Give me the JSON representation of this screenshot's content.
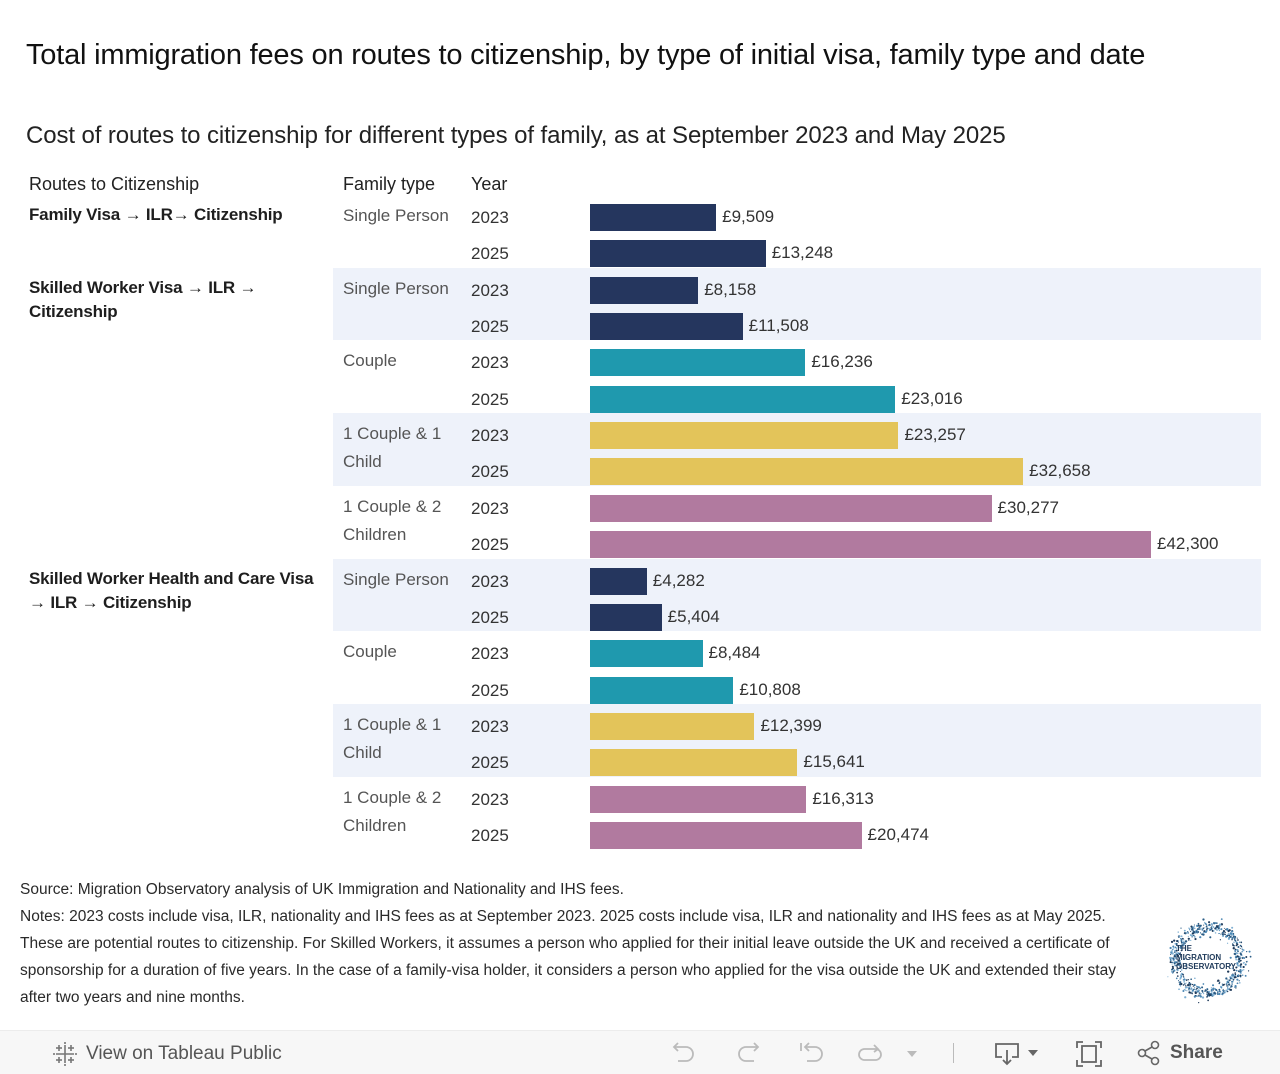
{
  "header": {
    "title": "Total immigration fees on routes to citizenship, by type of initial visa, family type and date",
    "subtitle": "Cost of routes to citizenship for different types of family, as at  September 2023 and May 2025"
  },
  "columns": {
    "route": "Routes to Citizenship",
    "family": "Family type",
    "year": "Year"
  },
  "colors": {
    "Single Person": "#25365e",
    "Couple": "#1f99ae",
    "1 Couple & 1 Child": "#e3c45a",
    "1 Couple & 2 Children": "#b17a9f",
    "band": "#eef2fa"
  },
  "chart_data": {
    "type": "bar",
    "orientation": "horizontal",
    "title": "Total immigration fees on routes to citizenship, by type of initial visa, family type and date",
    "subtitle": "Cost of routes to citizenship for different types of family, as at  September 2023 and May 2025",
    "xlabel": "",
    "ylabel": "",
    "currency": "£",
    "xlim": [
      0,
      42300
    ],
    "grid": false,
    "legend": "none",
    "groups": [
      {
        "route": "Family Visa → ILR→ Citizenship",
        "families": [
          {
            "family": "Single Person",
            "banded": false,
            "years": [
              {
                "year": "2023",
                "value": 9509,
                "label": "£9,509"
              },
              {
                "year": "2025",
                "value": 13248,
                "label": "£13,248"
              }
            ]
          }
        ]
      },
      {
        "route": "Skilled Worker Visa → ILR → Citizenship",
        "families": [
          {
            "family": "Single Person",
            "banded": true,
            "years": [
              {
                "year": "2023",
                "value": 8158,
                "label": "£8,158"
              },
              {
                "year": "2025",
                "value": 11508,
                "label": "£11,508"
              }
            ]
          },
          {
            "family": "Couple",
            "banded": false,
            "years": [
              {
                "year": "2023",
                "value": 16236,
                "label": "£16,236"
              },
              {
                "year": "2025",
                "value": 23016,
                "label": "£23,016"
              }
            ]
          },
          {
            "family": "1 Couple & 1 Child",
            "banded": true,
            "years": [
              {
                "year": "2023",
                "value": 23257,
                "label": "£23,257"
              },
              {
                "year": "2025",
                "value": 32658,
                "label": "£32,658"
              }
            ]
          },
          {
            "family": "1 Couple & 2 Children",
            "banded": false,
            "years": [
              {
                "year": "2023",
                "value": 30277,
                "label": "£30,277"
              },
              {
                "year": "2025",
                "value": 42300,
                "label": "£42,300"
              }
            ]
          }
        ]
      },
      {
        "route": "Skilled Worker Health and Care Visa → ILR → Citizenship",
        "families": [
          {
            "family": "Single Person",
            "banded": true,
            "years": [
              {
                "year": "2023",
                "value": 4282,
                "label": "£4,282"
              },
              {
                "year": "2025",
                "value": 5404,
                "label": "£5,404"
              }
            ]
          },
          {
            "family": "Couple",
            "banded": false,
            "years": [
              {
                "year": "2023",
                "value": 8484,
                "label": "£8,484"
              },
              {
                "year": "2025",
                "value": 10808,
                "label": "£10,808"
              }
            ]
          },
          {
            "family": "1 Couple & 1 Child",
            "banded": true,
            "years": [
              {
                "year": "2023",
                "value": 12399,
                "label": "£12,399"
              },
              {
                "year": "2025",
                "value": 15641,
                "label": "£15,641"
              }
            ]
          },
          {
            "family": "1 Couple & 2 Children",
            "banded": false,
            "years": [
              {
                "year": "2023",
                "value": 16313,
                "label": "£16,313"
              },
              {
                "year": "2025",
                "value": 20474,
                "label": "£20,474"
              }
            ]
          }
        ]
      }
    ]
  },
  "footer": {
    "source": "Source: Migration Observatory analysis of UK Immigration and Nationality and IHS fees.",
    "notes": "Notes: 2023 costs include visa, ILR,  nationality and IHS  fees  as at September 2023. 2025 costs include visa, ILR and nationality and IHS fees as at May 2025. These are potential routes to citizenship. For Skilled Workers, it assumes a person who applied for their initial leave outside the UK and received a certificate of sponsorship for a duration of five years. In the case of a family-visa holder, it considers a person who applied for the visa outside the UK and extended their stay after two years and nine months.",
    "logo_text": [
      "THE",
      "MIGRATION",
      "OBSERVATORY"
    ]
  },
  "toolbar": {
    "view_on_tableau": "View on Tableau Public",
    "share": "Share",
    "icons": [
      "tableau-logo-icon",
      "undo-icon",
      "redo-icon",
      "revert-icon",
      "refresh-icon",
      "refresh-dropdown-icon",
      "download-icon",
      "fullscreen-icon",
      "share-icon"
    ]
  }
}
